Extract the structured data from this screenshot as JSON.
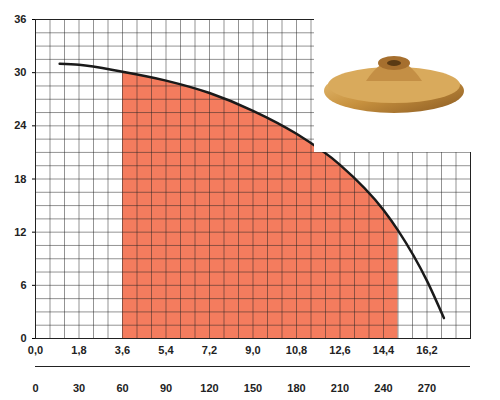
{
  "chart_data": {
    "type": "line",
    "x": [
      1.0,
      1.8,
      3.6,
      5.4,
      7.2,
      9.0,
      10.8,
      12.6,
      14.4,
      15.0,
      16.2,
      16.9
    ],
    "values": [
      31.0,
      30.9,
      30.1,
      29.1,
      27.7,
      25.7,
      23.1,
      19.6,
      14.5,
      12.2,
      6.5,
      2.3
    ],
    "color": "#1a1a1a",
    "xlim": [
      0,
      18
    ],
    "ylim": [
      0,
      36
    ],
    "xticks": [
      {
        "value": 0,
        "label": "0,0"
      },
      {
        "value": 1.8,
        "label": "1,8"
      },
      {
        "value": 3.6,
        "label": "3,6"
      },
      {
        "value": 5.4,
        "label": "5,4"
      },
      {
        "value": 7.2,
        "label": "7,2"
      },
      {
        "value": 9.0,
        "label": "9,0"
      },
      {
        "value": 10.8,
        "label": "10,8"
      },
      {
        "value": 12.6,
        "label": "12,6"
      },
      {
        "value": 14.4,
        "label": "14,4"
      },
      {
        "value": 16.2,
        "label": "16,2"
      }
    ],
    "yticks": [
      0,
      6,
      12,
      18,
      24,
      30,
      36
    ],
    "x2lim": [
      0,
      300
    ],
    "x2ticks": [
      0,
      30,
      60,
      90,
      120,
      150,
      180,
      210,
      240,
      270
    ],
    "grid": true,
    "highlight": {
      "range": [
        3.6,
        15.0
      ],
      "color": "#f47c5e"
    }
  }
}
